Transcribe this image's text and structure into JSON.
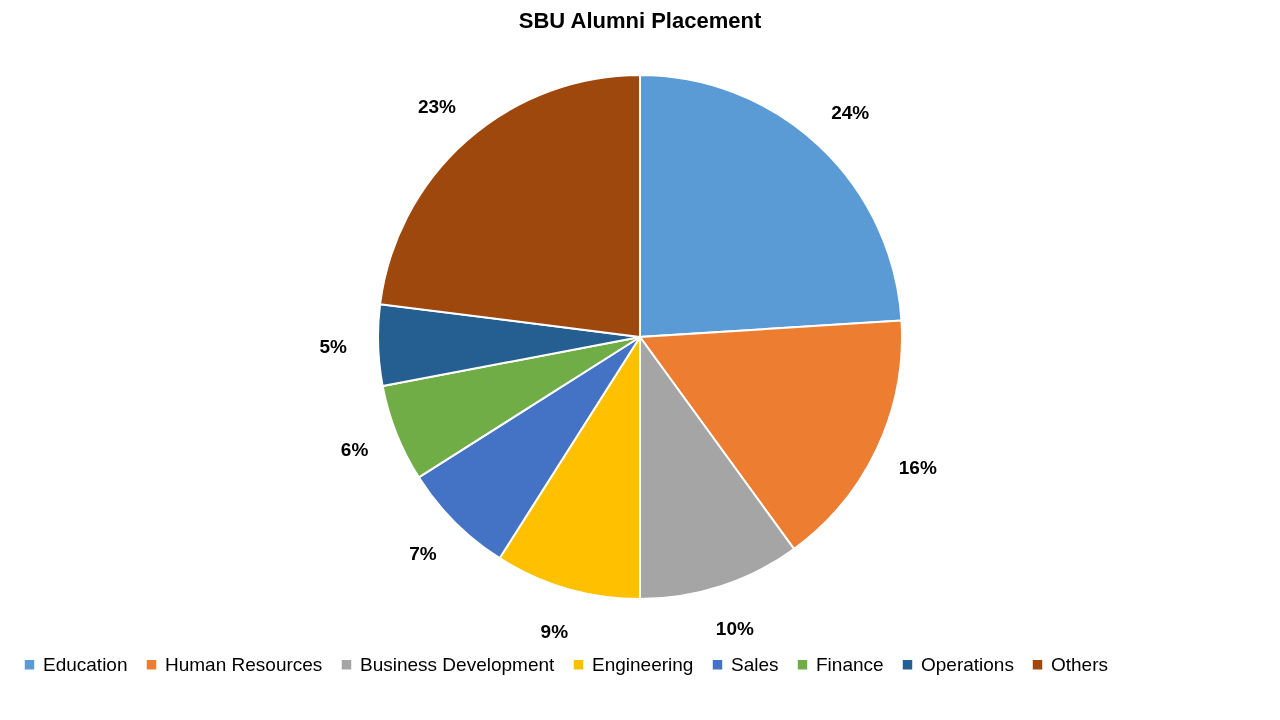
{
  "chart_data": {
    "type": "pie",
    "title": "SBU Alumni Placement",
    "categories": [
      "Education",
      "Human Resources",
      "Business Development",
      "Engineering",
      "Sales",
      "Finance",
      "Operations",
      "Others"
    ],
    "values": [
      24,
      16,
      10,
      9,
      7,
      6,
      5,
      23
    ],
    "colors": [
      "#5b9bd5",
      "#ed7d31",
      "#a5a5a5",
      "#ffc000",
      "#4472c4",
      "#70ad47",
      "#255e91",
      "#9e480e"
    ],
    "value_labels": [
      "24%",
      "16%",
      "10%",
      "9%",
      "7%",
      "6%",
      "5%",
      "23%"
    ],
    "legend": "bottom"
  }
}
